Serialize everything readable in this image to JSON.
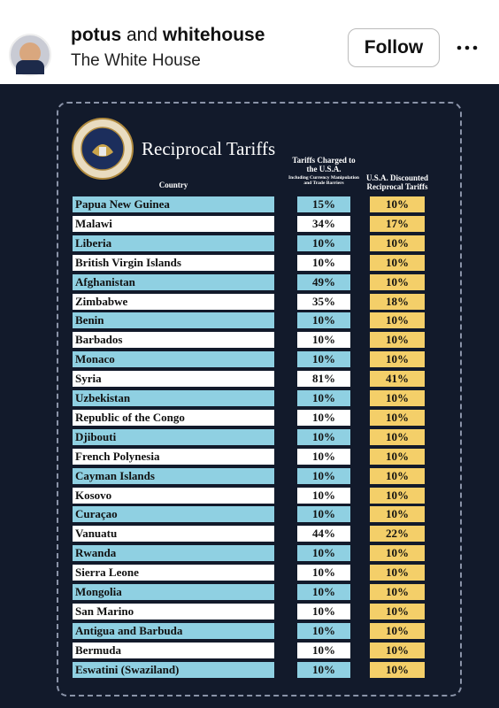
{
  "header": {
    "user1": "potus",
    "conjunction": "and",
    "user2": "whitehouse",
    "subtitle": "The White House",
    "follow": "Follow"
  },
  "table": {
    "title": "Reciprocal Tariffs",
    "columns": [
      {
        "label": "Country"
      },
      {
        "label": "Tariffs Charged to the U.S.A.",
        "note": "Including Currency Manipulation and Trade Barriers"
      },
      {
        "label": "U.S.A. Discounted Reciprocal Tariffs"
      }
    ],
    "rows": [
      [
        "Papua New Guinea",
        "15%",
        "10%"
      ],
      [
        "Malawi",
        "34%",
        "17%"
      ],
      [
        "Liberia",
        "10%",
        "10%"
      ],
      [
        "British Virgin Islands",
        "10%",
        "10%"
      ],
      [
        "Afghanistan",
        "49%",
        "10%"
      ],
      [
        "Zimbabwe",
        "35%",
        "18%"
      ],
      [
        "Benin",
        "10%",
        "10%"
      ],
      [
        "Barbados",
        "10%",
        "10%"
      ],
      [
        "Monaco",
        "10%",
        "10%"
      ],
      [
        "Syria",
        "81%",
        "41%"
      ],
      [
        "Uzbekistan",
        "10%",
        "10%"
      ],
      [
        "Republic of the Congo",
        "10%",
        "10%"
      ],
      [
        "Djibouti",
        "10%",
        "10%"
      ],
      [
        "French Polynesia",
        "10%",
        "10%"
      ],
      [
        "Cayman Islands",
        "10%",
        "10%"
      ],
      [
        "Kosovo",
        "10%",
        "10%"
      ],
      [
        "Curaçao",
        "10%",
        "10%"
      ],
      [
        "Vanuatu",
        "44%",
        "22%"
      ],
      [
        "Rwanda",
        "10%",
        "10%"
      ],
      [
        "Sierra Leone",
        "10%",
        "10%"
      ],
      [
        "Mongolia",
        "10%",
        "10%"
      ],
      [
        "San Marino",
        "10%",
        "10%"
      ],
      [
        "Antigua and Barbuda",
        "10%",
        "10%"
      ],
      [
        "Bermuda",
        "10%",
        "10%"
      ],
      [
        "Eswatini (Swaziland)",
        "10%",
        "10%"
      ]
    ]
  }
}
